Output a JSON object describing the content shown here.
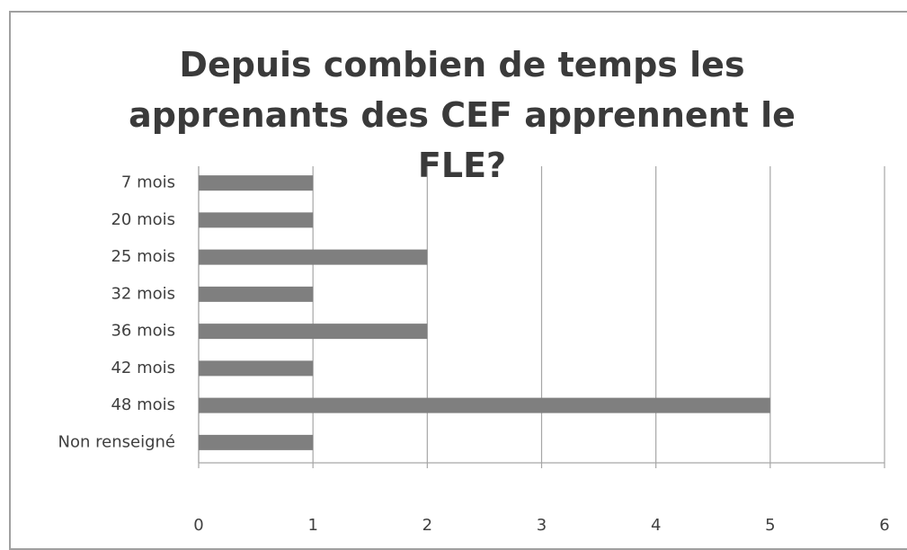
{
  "chart_data": {
    "type": "hbar",
    "title": "Depuis combien de temps les apprenants des CEF apprennent le FLE?",
    "categories": [
      "7 mois",
      "20 mois",
      "25 mois",
      "32 mois",
      "36 mois",
      "42 mois",
      "48 mois",
      "Non renseigné"
    ],
    "values": [
      1,
      1,
      2,
      1,
      2,
      1,
      5,
      1
    ],
    "color": "#7f7f7f",
    "xlim": [
      0,
      6
    ],
    "xticks": [
      0,
      1,
      2,
      3,
      4,
      5,
      6
    ],
    "grid": true
  }
}
